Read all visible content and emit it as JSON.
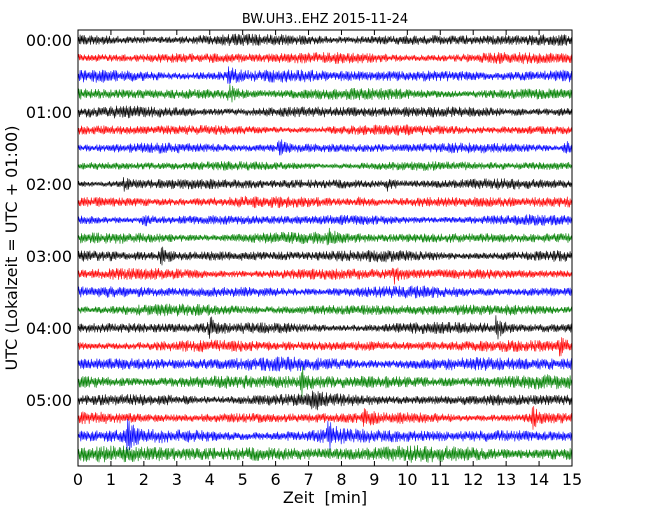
{
  "chart_data": {
    "type": "line",
    "title": "BW.UH3..EHZ 2015-11-24",
    "xlabel": "Zeit  [min]",
    "ylabel": "UTC (Lokalzeit = UTC + 01:00)",
    "xlim": [
      0,
      15
    ],
    "x_ticks": [
      "0",
      "1",
      "2",
      "3",
      "4",
      "5",
      "6",
      "7",
      "8",
      "9",
      "10",
      "11",
      "12",
      "13",
      "14",
      "15"
    ],
    "y_ticks": [
      "00:00",
      "01:00",
      "02:00",
      "03:00",
      "04:00",
      "05:00"
    ],
    "trace_colors": [
      "#000000",
      "#ff0000",
      "#0000ff",
      "#008000"
    ],
    "num_traces": 24,
    "trace_minutes": 15,
    "start_time": "00:00",
    "grid": false,
    "legend": "none",
    "trace_amplitude": [
      1.0,
      1.0,
      1.1,
      1.0,
      1.0,
      0.9,
      0.9,
      0.8,
      0.9,
      1.0,
      0.9,
      1.0,
      1.0,
      1.0,
      1.0,
      1.0,
      1.0,
      1.0,
      1.2,
      1.2,
      1.1,
      1.0,
      1.2,
      1.4
    ],
    "events": [
      {
        "trace": 2,
        "minute": 4.6,
        "amplitude": 2.2
      },
      {
        "trace": 3,
        "minute": 4.6,
        "amplitude": 2.0
      },
      {
        "trace": 6,
        "minute": 6.1,
        "amplitude": 2.4
      },
      {
        "trace": 6,
        "minute": 14.8,
        "amplitude": 2.0
      },
      {
        "trace": 8,
        "minute": 1.4,
        "amplitude": 1.8
      },
      {
        "trace": 8,
        "minute": 9.4,
        "amplitude": 1.8
      },
      {
        "trace": 9,
        "minute": 8.5,
        "amplitude": 1.8
      },
      {
        "trace": 10,
        "minute": 2.0,
        "amplitude": 1.8
      },
      {
        "trace": 11,
        "minute": 7.6,
        "amplitude": 1.8
      },
      {
        "trace": 12,
        "minute": 2.5,
        "amplitude": 2.2
      },
      {
        "trace": 13,
        "minute": 9.6,
        "amplitude": 2.0
      },
      {
        "trace": 16,
        "minute": 4.0,
        "amplitude": 2.4
      },
      {
        "trace": 16,
        "minute": 12.7,
        "amplitude": 2.4
      },
      {
        "trace": 17,
        "minute": 14.6,
        "amplitude": 2.2
      },
      {
        "trace": 19,
        "minute": 6.8,
        "amplitude": 2.6
      },
      {
        "trace": 20,
        "minute": 7.1,
        "amplitude": 2.2
      },
      {
        "trace": 21,
        "minute": 8.7,
        "amplitude": 2.2
      },
      {
        "trace": 21,
        "minute": 13.8,
        "amplitude": 2.4
      },
      {
        "trace": 22,
        "minute": 1.5,
        "amplitude": 2.6
      },
      {
        "trace": 22,
        "minute": 7.6,
        "amplitude": 2.4
      }
    ]
  }
}
